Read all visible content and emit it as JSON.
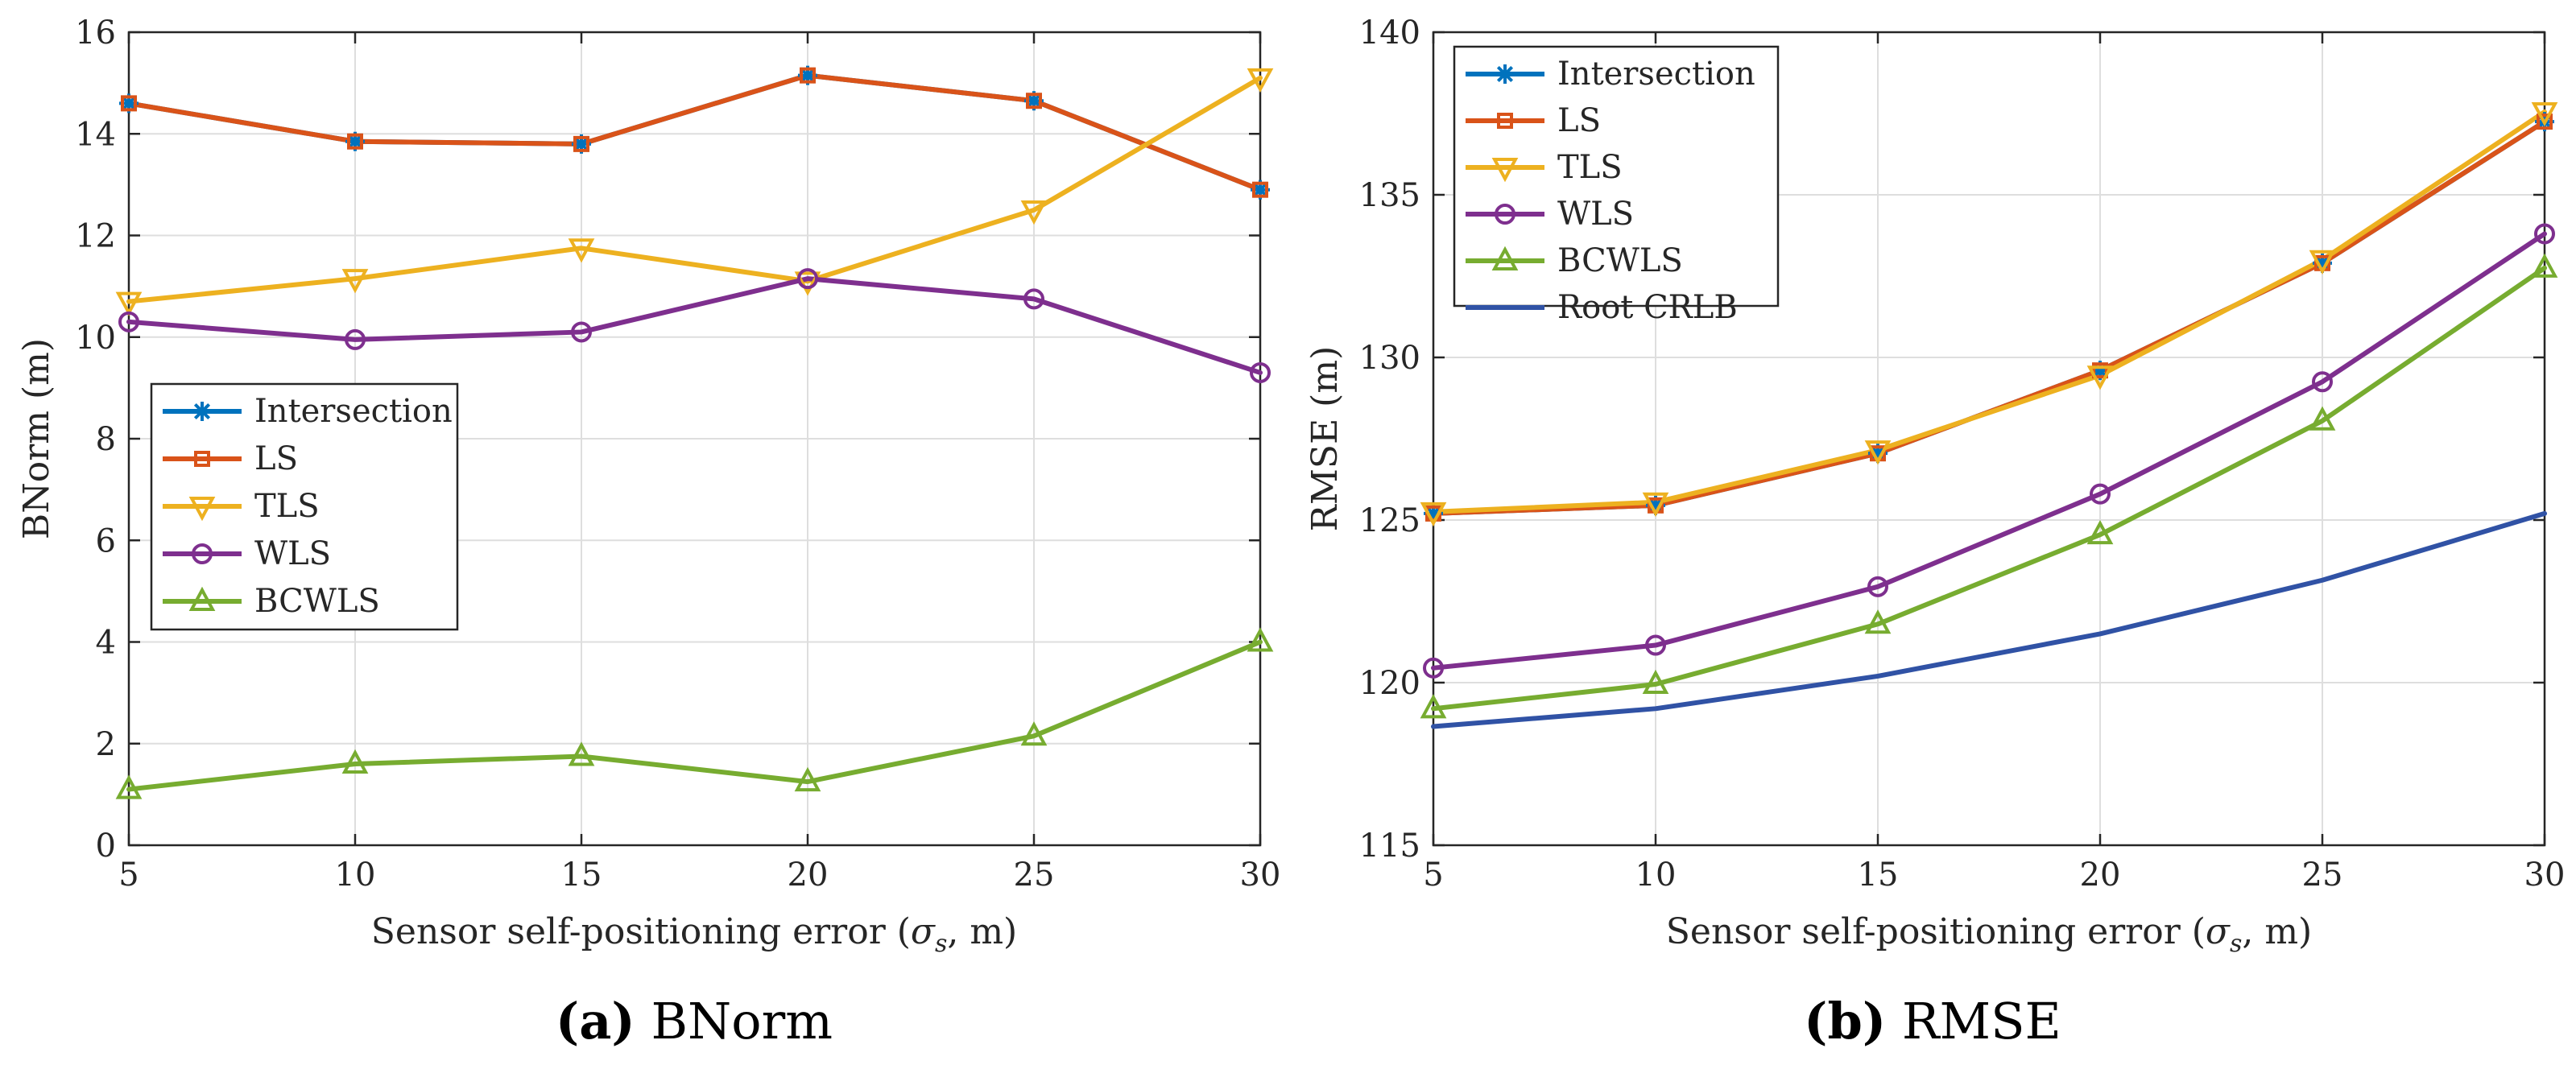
{
  "chart_data": [
    {
      "type": "line",
      "title": "",
      "caption_prefix": "(a)",
      "caption_text": "BNorm",
      "xlabel_pre": "Sensor self-positioning error (",
      "xlabel_sigma": "σ",
      "xlabel_sub": "s",
      "xlabel_post": ", m)",
      "ylabel": "BNorm (m)",
      "x": [
        5,
        10,
        15,
        20,
        25,
        30
      ],
      "xlim": [
        5,
        30
      ],
      "ylim": [
        0,
        16
      ],
      "xticks": [
        5,
        10,
        15,
        20,
        25,
        30
      ],
      "yticks": [
        0,
        2,
        4,
        6,
        8,
        10,
        12,
        14,
        16
      ],
      "grid": true,
      "legend_position": "center-left",
      "series": [
        {
          "name": "Intersection",
          "color": "#0072BD",
          "marker": "asterisk",
          "values": [
            14.6,
            13.85,
            13.8,
            15.15,
            14.65,
            12.9
          ]
        },
        {
          "name": "LS",
          "color": "#D95319",
          "marker": "square",
          "values": [
            14.6,
            13.85,
            13.8,
            15.15,
            14.65,
            12.9
          ]
        },
        {
          "name": "TLS",
          "color": "#EDB120",
          "marker": "triangle-down",
          "values": [
            10.7,
            11.15,
            11.75,
            11.1,
            12.5,
            15.1
          ]
        },
        {
          "name": "WLS",
          "color": "#7E2F8E",
          "marker": "circle",
          "values": [
            10.3,
            9.95,
            10.1,
            11.15,
            10.75,
            9.3
          ]
        },
        {
          "name": "BCWLS",
          "color": "#77AC30",
          "marker": "triangle-up",
          "values": [
            1.1,
            1.6,
            1.75,
            1.25,
            2.15,
            4.0
          ]
        }
      ]
    },
    {
      "type": "line",
      "title": "",
      "caption_prefix": "(b)",
      "caption_text": "RMSE",
      "xlabel_pre": "Sensor self-positioning error (",
      "xlabel_sigma": "σ",
      "xlabel_sub": "s",
      "xlabel_post": ", m)",
      "ylabel": "RMSE (m)",
      "x": [
        5,
        10,
        15,
        20,
        25,
        30
      ],
      "xlim": [
        5,
        30
      ],
      "ylim": [
        115,
        140
      ],
      "xticks": [
        5,
        10,
        15,
        20,
        25,
        30
      ],
      "yticks": [
        115,
        120,
        125,
        130,
        135,
        140
      ],
      "grid": true,
      "legend_position": "top-left",
      "series": [
        {
          "name": "Intersection",
          "color": "#0072BD",
          "marker": "asterisk",
          "values": [
            125.2,
            125.45,
            127.05,
            129.6,
            132.9,
            137.25
          ]
        },
        {
          "name": "LS",
          "color": "#D95319",
          "marker": "square",
          "values": [
            125.2,
            125.45,
            127.05,
            129.6,
            132.9,
            137.25
          ]
        },
        {
          "name": "TLS",
          "color": "#EDB120",
          "marker": "triangle-down",
          "values": [
            125.25,
            125.55,
            127.15,
            129.45,
            133.0,
            137.55
          ]
        },
        {
          "name": "WLS",
          "color": "#7E2F8E",
          "marker": "circle",
          "values": [
            120.45,
            121.15,
            122.95,
            125.8,
            129.25,
            133.8
          ]
        },
        {
          "name": "BCWLS",
          "color": "#77AC30",
          "marker": "triangle-up",
          "values": [
            119.2,
            119.95,
            121.8,
            124.55,
            128.05,
            132.75
          ]
        },
        {
          "name": "Root CRLB",
          "color": "#3052A5",
          "marker": "none",
          "values": [
            118.65,
            119.2,
            120.2,
            121.5,
            123.15,
            125.2
          ]
        }
      ]
    }
  ]
}
